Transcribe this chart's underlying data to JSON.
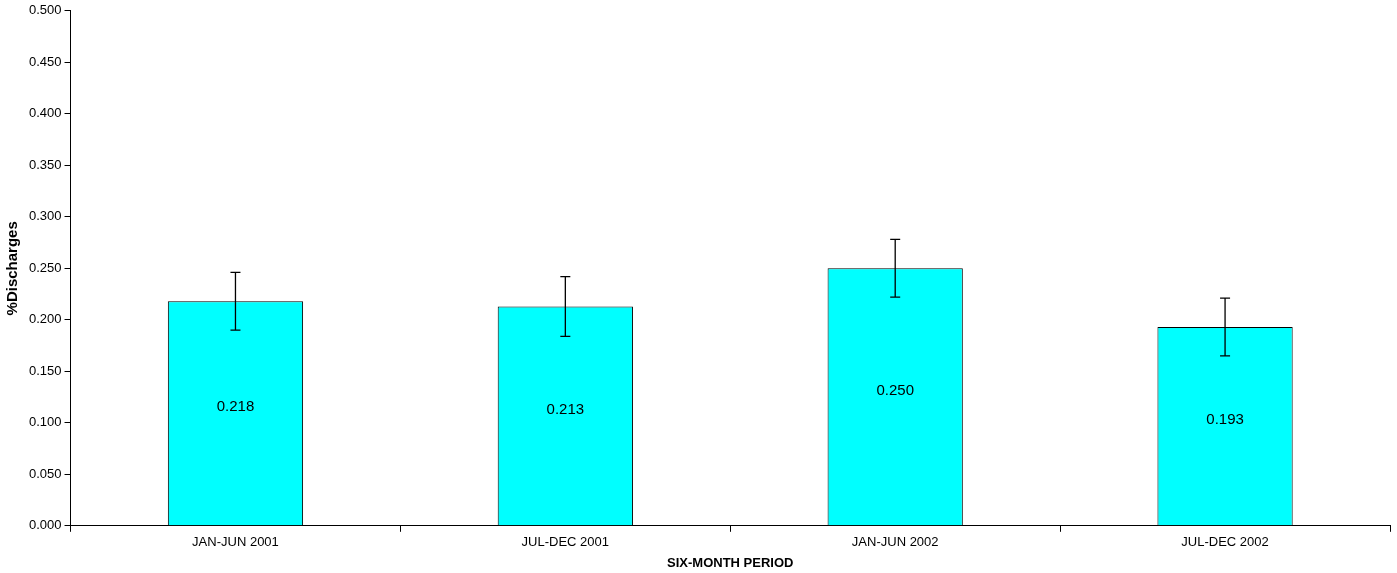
{
  "chart_data": {
    "type": "bar",
    "xlabel": "SIX-MONTH PERIOD",
    "ylabel": "%Discharges",
    "categories": [
      "JAN-JUN 2001",
      "JUL-DEC 2001",
      "JAN-JUN 2002",
      "JUL-DEC 2002"
    ],
    "values": [
      0.218,
      0.213,
      0.25,
      0.193
    ],
    "errors": [
      0.028,
      0.029,
      0.028,
      0.028
    ],
    "color": "#00ffff",
    "value_labels": [
      "0.218",
      "0.213",
      "0.250",
      "0.193"
    ],
    "ylim": [
      0,
      0.5
    ],
    "yticks": [
      {
        "value": 0,
        "label": "0.000"
      },
      {
        "value": 0.05,
        "label": "0.050"
      },
      {
        "value": 0.1,
        "label": "0.100"
      },
      {
        "value": 0.15,
        "label": "0.150"
      },
      {
        "value": 0.2,
        "label": "0.200"
      },
      {
        "value": 0.25,
        "label": "0.250"
      },
      {
        "value": 0.3,
        "label": "0.300"
      },
      {
        "value": 0.35,
        "label": "0.350"
      },
      {
        "value": 0.4,
        "label": "0.400"
      },
      {
        "value": 0.45,
        "label": "0.450"
      },
      {
        "value": 0.5,
        "label": "0.500"
      }
    ],
    "grid": false,
    "legend": false
  }
}
